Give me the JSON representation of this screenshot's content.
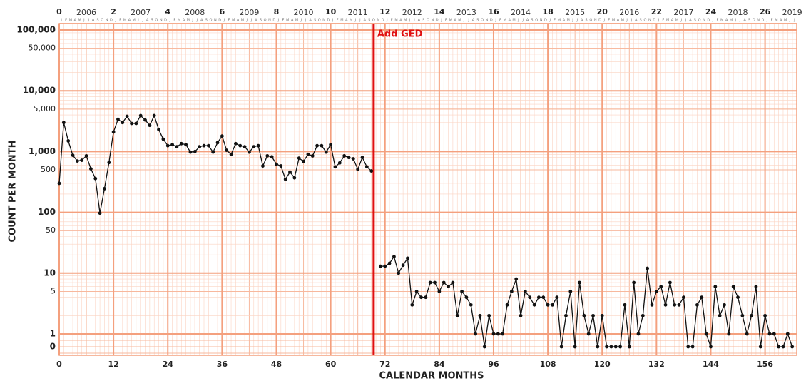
{
  "chart_data": {
    "type": "line",
    "log_y": true,
    "grid": true,
    "x_label": "CALENDAR MONTHS",
    "y_label": "COUNT PER MONTH",
    "annotation": {
      "text": "Add GED",
      "x": 69.5,
      "color": "#e01010"
    },
    "xlim": [
      0,
      163
    ],
    "ylim": [
      1,
      100000
    ],
    "xticks": [
      0,
      12,
      24,
      36,
      48,
      60,
      72,
      84,
      96,
      108,
      120,
      132,
      144,
      156
    ],
    "top_ticks": [
      {
        "value": 0,
        "label": "0"
      },
      {
        "value": 12,
        "label": "2"
      },
      {
        "value": 24,
        "label": "4"
      },
      {
        "value": 36,
        "label": "6"
      },
      {
        "value": 48,
        "label": "8"
      },
      {
        "value": 60,
        "label": "10"
      },
      {
        "value": 72,
        "label": "12"
      },
      {
        "value": 84,
        "label": "14"
      },
      {
        "value": 96,
        "label": "16"
      },
      {
        "value": 108,
        "label": "18"
      },
      {
        "value": 120,
        "label": "20"
      },
      {
        "value": 132,
        "label": "22"
      },
      {
        "value": 144,
        "label": "24"
      },
      {
        "value": 156,
        "label": "26"
      }
    ],
    "year_ticks": [
      {
        "value": 6,
        "label": "2006"
      },
      {
        "value": 18,
        "label": "2007"
      },
      {
        "value": 30,
        "label": "2008"
      },
      {
        "value": 42,
        "label": "2009"
      },
      {
        "value": 54,
        "label": "2010"
      },
      {
        "value": 66,
        "label": "2011"
      },
      {
        "value": 78,
        "label": "2012"
      },
      {
        "value": 90,
        "label": "2013"
      },
      {
        "value": 102,
        "label": "2014"
      },
      {
        "value": 114,
        "label": "2015"
      },
      {
        "value": 126,
        "label": "2016"
      },
      {
        "value": 138,
        "label": "2017"
      },
      {
        "value": 150,
        "label": "2018"
      },
      {
        "value": 162,
        "label": "2019"
      }
    ],
    "month_letters": [
      "J",
      "F",
      "M",
      "A",
      "M",
      "J",
      "J",
      "A",
      "S",
      "O",
      "N",
      "D"
    ],
    "yticks": [
      {
        "value": 100000,
        "label": "100,000"
      },
      {
        "value": 50000,
        "label": "50,000"
      },
      {
        "value": 10000,
        "label": "10,000"
      },
      {
        "value": 5000,
        "label": "5,000"
      },
      {
        "value": 1000,
        "label": "1,000"
      },
      500,
      100,
      50,
      10,
      5,
      1,
      0
    ],
    "x": [
      0,
      1,
      2,
      3,
      4,
      5,
      6,
      7,
      8,
      9,
      10,
      11,
      12,
      13,
      14,
      15,
      16,
      17,
      18,
      19,
      20,
      21,
      22,
      23,
      24,
      25,
      26,
      27,
      28,
      29,
      30,
      31,
      32,
      33,
      34,
      35,
      36,
      37,
      38,
      39,
      40,
      41,
      42,
      43,
      44,
      45,
      46,
      47,
      48,
      49,
      50,
      51,
      52,
      53,
      54,
      55,
      56,
      57,
      58,
      59,
      60,
      61,
      62,
      63,
      64,
      65,
      66,
      67,
      68,
      69,
      70,
      71,
      72,
      73,
      74,
      75,
      76,
      77,
      78,
      79,
      80,
      81,
      82,
      83,
      84,
      85,
      86,
      87,
      88,
      89,
      90,
      91,
      92,
      93,
      94,
      95,
      96,
      97,
      98,
      99,
      100,
      101,
      102,
      103,
      104,
      105,
      106,
      107,
      108,
      109,
      110,
      111,
      112,
      113,
      114,
      115,
      116,
      117,
      118,
      119,
      120,
      121,
      122,
      123,
      124,
      125,
      126,
      127,
      128,
      129,
      130,
      131,
      132,
      133,
      134,
      135,
      136,
      137,
      138,
      139,
      140,
      141,
      142,
      143,
      144,
      145,
      146,
      147,
      148,
      149,
      150,
      151,
      152,
      153,
      154,
      155,
      156,
      157,
      158,
      159,
      160,
      161,
      162
    ],
    "series": [
      {
        "color": "#111111",
        "values": [
          300,
          3000,
          1500,
          870,
          700,
          720,
          850,
          520,
          360,
          97,
          245,
          660,
          2100,
          3400,
          3000,
          3800,
          2900,
          2900,
          3900,
          3300,
          2700,
          3900,
          2300,
          1600,
          1250,
          1300,
          1200,
          1350,
          1300,
          980,
          1000,
          1200,
          1250,
          1250,
          980,
          1400,
          1800,
          1050,
          900,
          1350,
          1250,
          1200,
          980,
          1200,
          1250,
          580,
          850,
          820,
          620,
          580,
          350,
          460,
          370,
          780,
          690,
          900,
          850,
          1250,
          1250,
          980,
          1300,
          560,
          650,
          850,
          800,
          760,
          510,
          800,
          560,
          480,
          null,
          13,
          13,
          14.5,
          18.7,
          10,
          13.5,
          17.6,
          3,
          5,
          4,
          4,
          7,
          7,
          5,
          7,
          6,
          7,
          2,
          5,
          4,
          3,
          1,
          2,
          0,
          2,
          1,
          1,
          1,
          3,
          5,
          8,
          2,
          5,
          4,
          3,
          4,
          4,
          3,
          3,
          4,
          0,
          2,
          5,
          0,
          7,
          2,
          1,
          2,
          0,
          2,
          0,
          0,
          0,
          0,
          3,
          0,
          7,
          1,
          2,
          12,
          3,
          5,
          6,
          3,
          7,
          3,
          3,
          4,
          0,
          0,
          3,
          4,
          1,
          0,
          6,
          2,
          3,
          1,
          6,
          4,
          2,
          1,
          2,
          6,
          0,
          2,
          1,
          1,
          0,
          0,
          1,
          0
        ]
      }
    ]
  }
}
